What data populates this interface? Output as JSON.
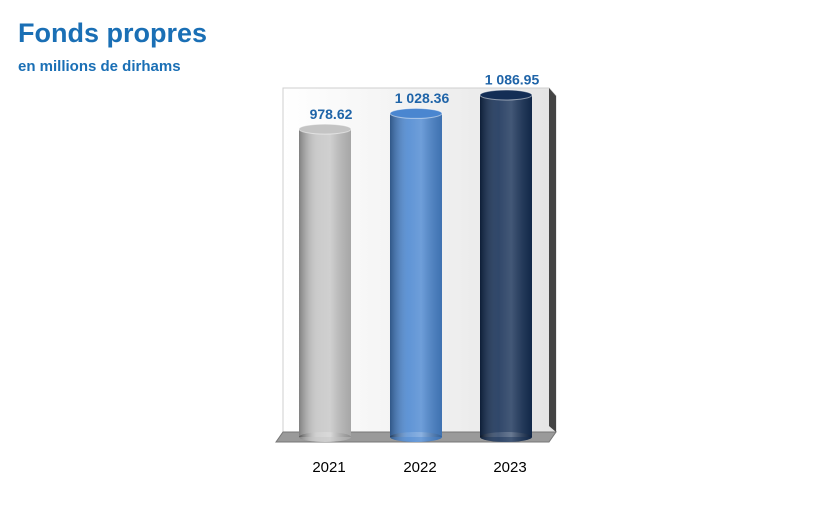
{
  "chart_data": {
    "type": "bar",
    "title": "Fonds propres",
    "subtitle": "en millions de dirhams",
    "categories": [
      "2021",
      "2022",
      "2023"
    ],
    "values": [
      978.62,
      1028.36,
      1086.95
    ],
    "value_labels": [
      "978.62",
      "1 028.36",
      "1 086.95"
    ],
    "colors": [
      "#c4c4c4",
      "#4a86d0",
      "#142e55"
    ]
  }
}
